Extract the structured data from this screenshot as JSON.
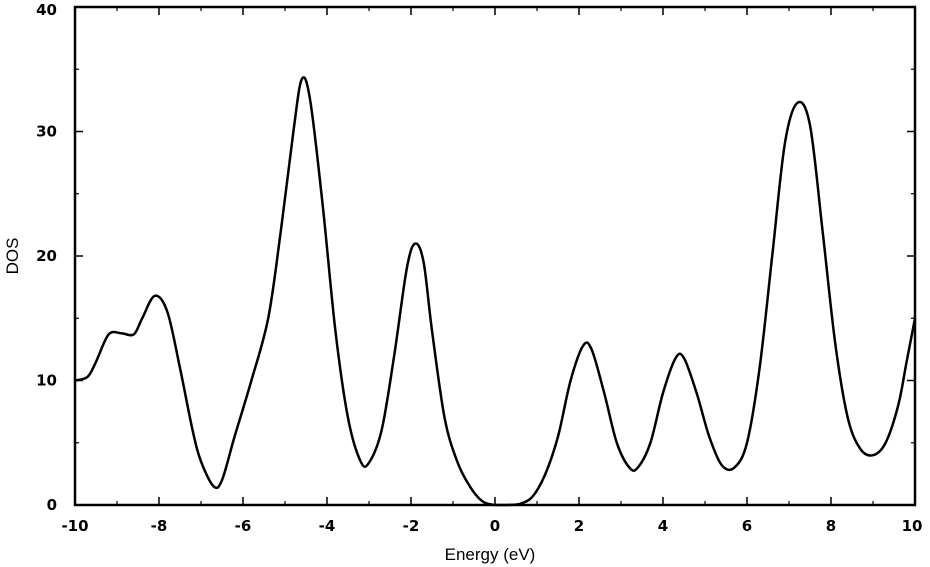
{
  "chart_data": {
    "type": "line",
    "title": "",
    "xlabel": "Energy (eV)",
    "ylabel": "DOS",
    "xlim": [
      -10,
      10
    ],
    "ylim": [
      0,
      40
    ],
    "grid": false,
    "xticks": [
      -10,
      -8,
      -6,
      -4,
      -2,
      0,
      2,
      4,
      6,
      8,
      10
    ],
    "xtick_labels": [
      "-10",
      "-8",
      "-6",
      "-4",
      "-2",
      "0",
      "2",
      "4",
      "6",
      "8",
      "10"
    ],
    "yticks": [
      0,
      10,
      20,
      30,
      40
    ],
    "ytick_labels": [
      "0",
      "10",
      "20",
      "30",
      "40"
    ],
    "series": [
      {
        "name": "DOS",
        "color": "#000000",
        "x": [
          -10,
          -9.7,
          -9.5,
          -9.2,
          -8.9,
          -8.6,
          -8.4,
          -8.1,
          -7.8,
          -7.5,
          -7.2,
          -7.0,
          -6.7,
          -6.5,
          -6.2,
          -5.8,
          -5.4,
          -5.1,
          -4.8,
          -4.6,
          -4.4,
          -4.1,
          -3.8,
          -3.5,
          -3.2,
          -3.0,
          -2.7,
          -2.4,
          -2.1,
          -1.9,
          -1.7,
          -1.5,
          -1.2,
          -0.9,
          -0.6,
          -0.3,
          0,
          0.3,
          0.6,
          0.9,
          1.2,
          1.5,
          1.8,
          2.1,
          2.3,
          2.6,
          2.9,
          3.2,
          3.4,
          3.7,
          4.0,
          4.3,
          4.5,
          4.8,
          5.1,
          5.4,
          5.7,
          6.0,
          6.3,
          6.6,
          6.9,
          7.2,
          7.5,
          7.8,
          8.1,
          8.4,
          8.7,
          9.0,
          9.3,
          9.6,
          9.8,
          10
        ],
        "y": [
          10,
          10.3,
          11.5,
          13.7,
          13.8,
          13.7,
          15,
          16.8,
          15.5,
          11,
          6,
          3.5,
          1.5,
          2,
          5.5,
          10,
          15,
          22,
          30,
          34.2,
          32.5,
          24,
          14,
          7,
          3.5,
          3.4,
          6,
          12,
          19,
          21,
          19.5,
          14,
          7,
          3.5,
          1.5,
          0.3,
          0,
          0,
          0.1,
          0.7,
          2.5,
          5.5,
          10,
          12.8,
          12.5,
          9,
          5,
          3,
          3,
          5,
          9,
          11.8,
          11.8,
          9,
          5.5,
          3.2,
          3,
          5,
          11,
          20,
          29,
          32.3,
          30.5,
          22,
          13,
          7,
          4.5,
          4,
          5,
          8,
          11.5,
          15
        ]
      }
    ]
  }
}
